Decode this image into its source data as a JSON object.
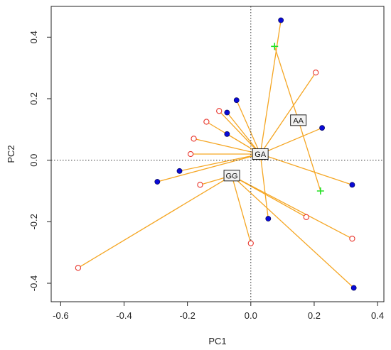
{
  "chart_data": {
    "type": "scatter",
    "xlabel": "PC1",
    "ylabel": "PC2",
    "xlim": [
      -0.63,
      0.42
    ],
    "ylim": [
      -0.46,
      0.5
    ],
    "x_ticks": [
      -0.6,
      -0.4,
      -0.2,
      0.0,
      0.2,
      0.4
    ],
    "y_ticks": [
      -0.4,
      -0.2,
      0.0,
      0.2,
      0.4
    ],
    "x_tick_labels": [
      "-0.6",
      "-0.4",
      "-0.2",
      "0.0",
      "0.2",
      "0.4"
    ],
    "y_tick_labels": [
      "-0.4",
      "-0.2",
      "0.0",
      "0.2",
      "0.4"
    ],
    "reference_lines": {
      "x": 0,
      "y": 0,
      "style": "dotted"
    },
    "grid": false,
    "connector_color": "#F5A623",
    "groups": [
      {
        "label": "AA",
        "centroid": [
          0.15,
          0.13
        ]
      },
      {
        "label": "GA",
        "centroid": [
          0.03,
          0.02
        ]
      },
      {
        "label": "GG",
        "centroid": [
          -0.06,
          -0.05
        ]
      }
    ],
    "series": [
      {
        "marker": "filled-circle",
        "color": "#0A0AD6",
        "points": [
          {
            "x": 0.095,
            "y": 0.455,
            "group": "GA"
          },
          {
            "x": -0.045,
            "y": 0.195,
            "group": "GA"
          },
          {
            "x": -0.075,
            "y": 0.155,
            "group": "GA"
          },
          {
            "x": -0.075,
            "y": 0.085,
            "group": "GA"
          },
          {
            "x": 0.225,
            "y": 0.105,
            "group": "GA"
          },
          {
            "x": -0.225,
            "y": -0.035,
            "group": "GA"
          },
          {
            "x": -0.295,
            "y": -0.07,
            "group": "GA"
          },
          {
            "x": 0.32,
            "y": -0.08,
            "group": "GA"
          },
          {
            "x": 0.055,
            "y": -0.19,
            "group": "GA"
          },
          {
            "x": 0.325,
            "y": -0.415,
            "group": "GG"
          }
        ]
      },
      {
        "marker": "open-circle",
        "color": "#E8332A",
        "points": [
          {
            "x": 0.205,
            "y": 0.285,
            "group": "GA"
          },
          {
            "x": -0.1,
            "y": 0.16,
            "group": "GA"
          },
          {
            "x": -0.14,
            "y": 0.125,
            "group": "GA"
          },
          {
            "x": -0.18,
            "y": 0.07,
            "group": "GA"
          },
          {
            "x": -0.19,
            "y": 0.02,
            "group": "GA"
          },
          {
            "x": -0.16,
            "y": -0.08,
            "group": "GG"
          },
          {
            "x": 0.175,
            "y": -0.185,
            "group": "GG"
          },
          {
            "x": 0.32,
            "y": -0.255,
            "group": "GG"
          },
          {
            "x": 0.0,
            "y": -0.27,
            "group": "GG"
          },
          {
            "x": -0.545,
            "y": -0.35,
            "group": "GG"
          }
        ]
      },
      {
        "marker": "plus",
        "color": "#22E022",
        "points": [
          {
            "x": 0.075,
            "y": 0.37,
            "group": "AA"
          },
          {
            "x": 0.22,
            "y": -0.1,
            "group": "AA"
          }
        ]
      }
    ]
  }
}
